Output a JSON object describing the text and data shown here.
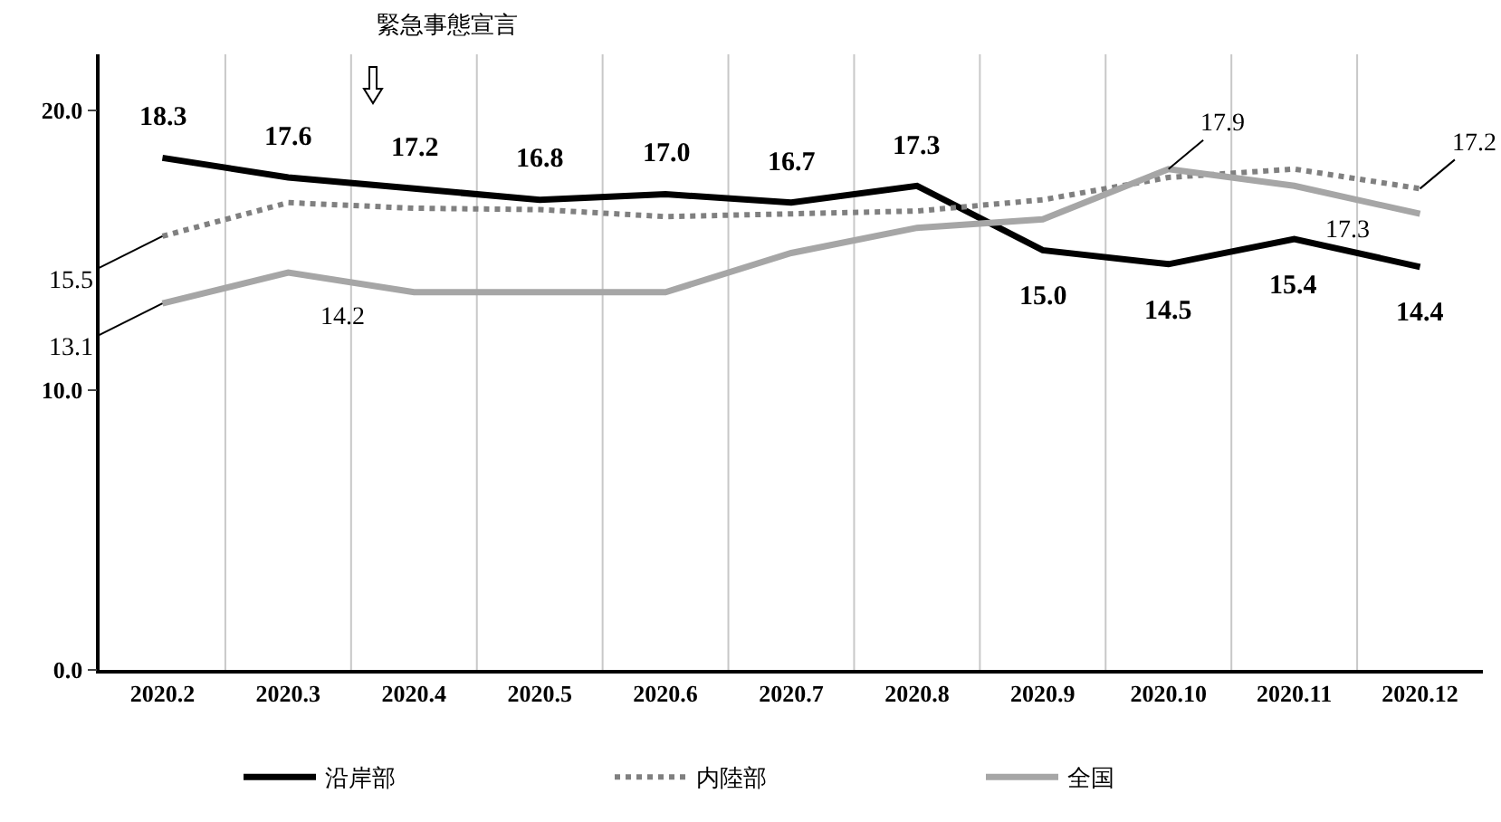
{
  "chart_data": {
    "type": "line",
    "categories": [
      "2020.2",
      "2020.3",
      "2020.4",
      "2020.5",
      "2020.6",
      "2020.7",
      "2020.8",
      "2020.9",
      "2020.10",
      "2020.11",
      "2020.12"
    ],
    "series": [
      {
        "name": "沿岸部",
        "color": "#000000",
        "line_style": "solid",
        "values": [
          18.3,
          17.6,
          17.2,
          16.8,
          17.0,
          16.7,
          17.3,
          15.0,
          14.5,
          15.4,
          14.4
        ],
        "value_labels": [
          "18.3",
          "17.6",
          "17.2",
          "16.8",
          "17.0",
          "16.7",
          "17.3",
          "15.0",
          "14.5",
          "15.4",
          "14.4"
        ]
      },
      {
        "name": "内陸部",
        "color": "#808080",
        "line_style": "dotted",
        "values": [
          15.5,
          16.7,
          16.5,
          16.45,
          16.2,
          16.3,
          16.4,
          16.8,
          17.6,
          17.9,
          17.2
        ],
        "value_labels": [
          "15.5",
          null,
          null,
          null,
          null,
          null,
          null,
          null,
          null,
          null,
          "17.2"
        ]
      },
      {
        "name": "全国",
        "color": "#a6a6a6",
        "line_style": "solid",
        "values": [
          13.1,
          14.2,
          13.5,
          13.5,
          13.5,
          14.9,
          15.8,
          16.1,
          17.9,
          17.3,
          16.3
        ],
        "value_labels": [
          "13.1",
          "14.2",
          null,
          null,
          null,
          null,
          null,
          null,
          "17.9",
          "17.3",
          null
        ]
      }
    ],
    "ylim": [
      0,
      22
    ],
    "yticks": [
      {
        "value": 0,
        "label": "0.0"
      },
      {
        "value": 10,
        "label": "10.0"
      },
      {
        "value": 20,
        "label": "20.0"
      }
    ],
    "grid": "x",
    "legend": "bottom",
    "marker": "none",
    "annotations": [
      "緊急事態宣言"
    ]
  }
}
